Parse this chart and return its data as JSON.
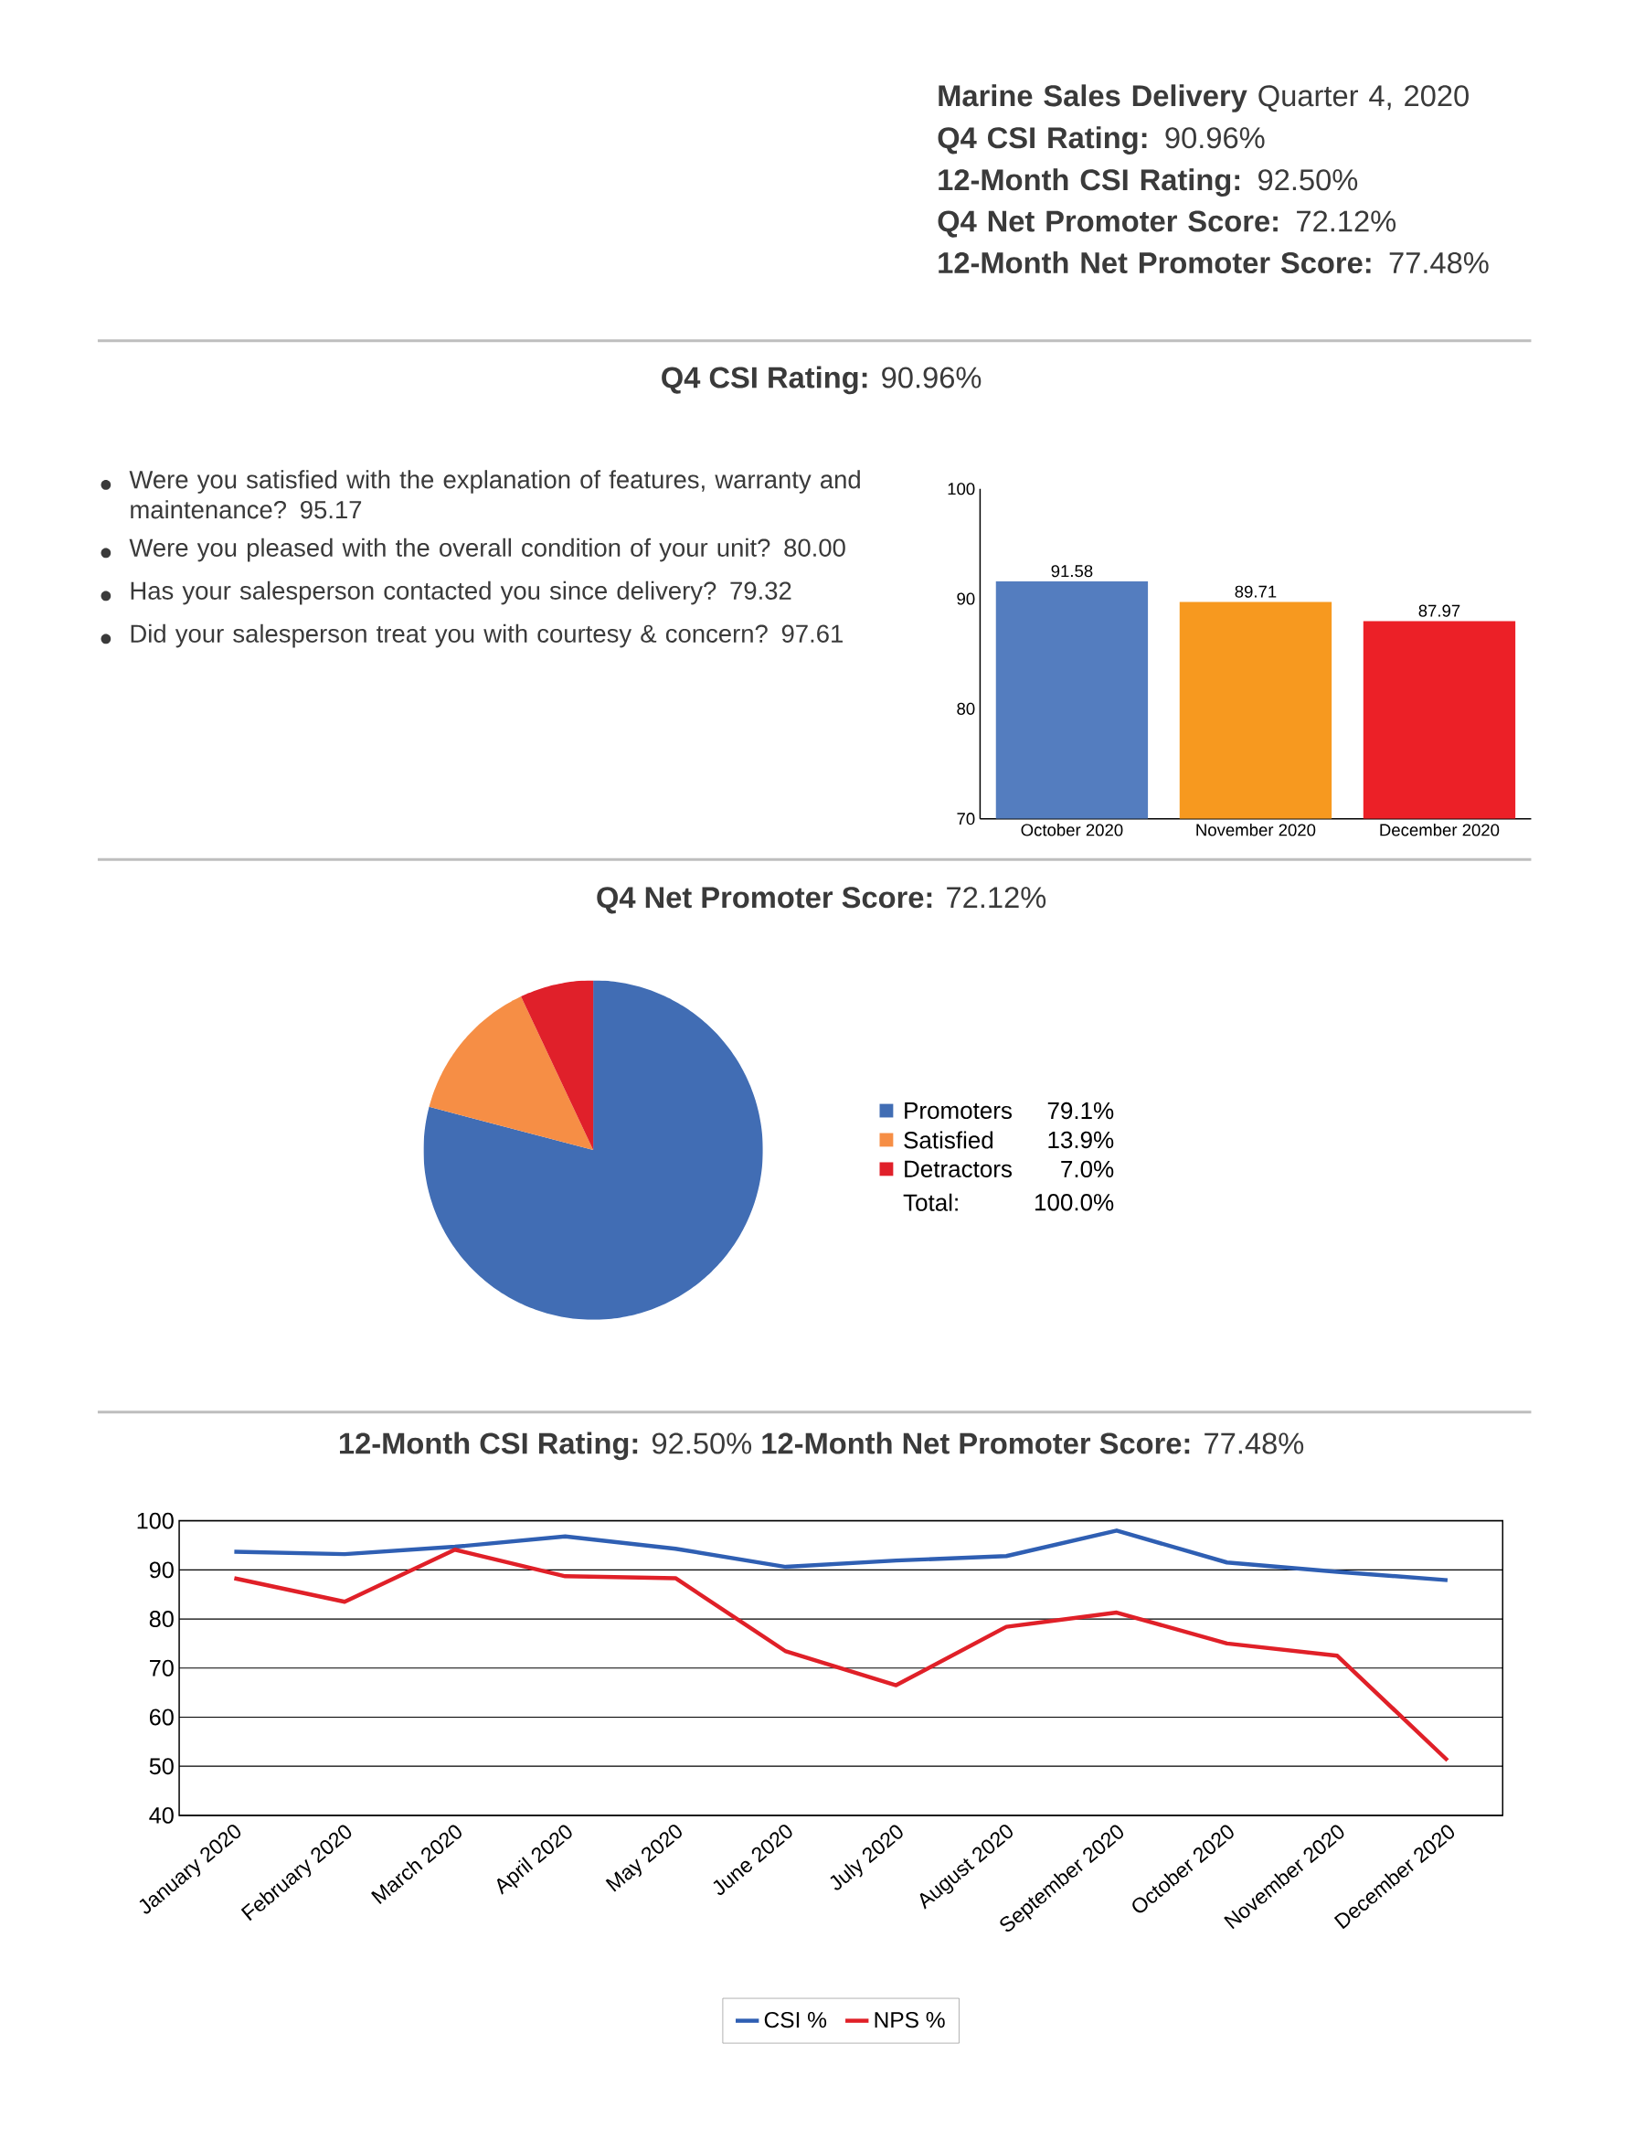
{
  "chart_data": [
    {
      "type": "other",
      "annotations": [
        "**Marine Sales Delivery** Quarter 4, 2020",
        "**Q4 CSI Rating:** 90.96%",
        "**12-Month CSI Rating:** 92.50%",
        "**Q4 Net Promoter Score:** 72.12%",
        "**12-Month Net Promoter Score:** 77.48%"
      ]
    },
    {
      "type": "bar",
      "title": "**Q4 CSI Rating:** 90.96%",
      "categories": [
        "October 2020",
        "November 2020",
        "December 2020"
      ],
      "values": [
        91.58,
        89.71,
        87.97
      ],
      "colors": [
        "#547dbf",
        "#f7991f",
        "#ec2027"
      ],
      "ylim": [
        70,
        100
      ],
      "yticks": [
        70,
        80,
        90,
        100
      ],
      "data_labels": true
    },
    {
      "type": "other",
      "annotations": [
        "Were you satisfied with the explanation of features, warranty and maintenance?  95.17",
        "Were you pleased with the overall condition of your unit?  80.00",
        "Has your salesperson contacted you since delivery?  79.32",
        "Did your salesperson treat you with courtesy & concern?  97.61"
      ]
    },
    {
      "type": "pie",
      "title": "**Q4 Net Promoter Score:** 72.12%",
      "categories": [
        "Promoters",
        "Satisfied",
        "Detractors"
      ],
      "values": [
        79.1,
        13.9,
        7.0
      ],
      "value_labels": [
        "79.1%",
        "13.9%",
        "7.0%"
      ],
      "colors": [
        "#416db4",
        "#f68e45",
        "#e0202a"
      ],
      "legend": "right",
      "annotations": [
        "Total:",
        "100.0%"
      ]
    },
    {
      "type": "line",
      "title": "**12-Month CSI Rating:** 92.50%   **12-Month Net Promoter Score:** 77.48%",
      "categories": [
        "January 2020",
        "February 2020",
        "March 2020",
        "April 2020",
        "May 2020",
        "June 2020",
        "July 2020",
        "August 2020",
        "September 2020",
        "October 2020",
        "November 2020",
        "December 2020"
      ],
      "ylim": [
        40,
        100
      ],
      "yticks": [
        40,
        50,
        60,
        70,
        80,
        90,
        100
      ],
      "grid": "y",
      "legend": "bottom",
      "series": [
        {
          "name": "CSI %",
          "color": "#2f5fb3",
          "values": [
            93.7,
            93.2,
            94.7,
            96.8,
            94.3,
            90.6,
            91.9,
            92.8,
            98.0,
            91.5,
            89.6,
            87.9
          ]
        },
        {
          "name": "NPS %",
          "color": "#e02028",
          "values": [
            88.3,
            83.5,
            94.1,
            88.7,
            88.3,
            73.4,
            66.5,
            78.4,
            81.3,
            75.0,
            72.5,
            51.2
          ]
        }
      ]
    }
  ]
}
